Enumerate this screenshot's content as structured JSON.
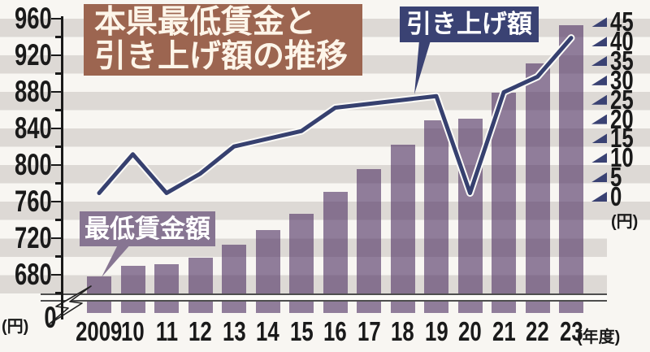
{
  "title": {
    "line1": "本県最低賃金と",
    "line2": "引き上げ額の推移",
    "full": "本県最低賃金と引き上げ額の推移"
  },
  "units": {
    "left": "(円)",
    "right": "(円)",
    "x": "(年度)",
    "axis_zero": "0"
  },
  "colors": {
    "bar": "#8d7a97",
    "line": "#36406f",
    "title_bg": "#9c6550",
    "increase_badge_bg": "#3a4273",
    "wage_badge_bg": "#877592",
    "stripe_gray": "#ddd9d5",
    "background": "#f8f6f2"
  },
  "chart_data": {
    "type": "bar",
    "subtype": "bar+line combo",
    "title": "本県最低賃金と引き上げ額の推移",
    "categories": [
      "2009",
      "10",
      "11",
      "12",
      "13",
      "14",
      "15",
      "16",
      "17",
      "18",
      "19",
      "20",
      "21",
      "22",
      "23"
    ],
    "x_unit": "年度",
    "series": [
      {
        "name": "最低賃金額",
        "type": "bar",
        "axis": "left",
        "unit": "円",
        "values": [
          678,
          690,
          692,
          699,
          713,
          729,
          747,
          771,
          796,
          822,
          849,
          851,
          879,
          911,
          953
        ]
      },
      {
        "name": "引き上げ額",
        "type": "line",
        "axis": "right",
        "unit": "円",
        "values": [
          2,
          12,
          2,
          7,
          14,
          16,
          18,
          24,
          25,
          26,
          27,
          2,
          28,
          32,
          42
        ]
      }
    ],
    "left_axis": {
      "ticks": [
        960,
        920,
        880,
        840,
        800,
        760,
        720,
        680
      ],
      "zero_label": "0",
      "unit": "円",
      "axis_break": true,
      "minor_step": 20
    },
    "right_axis": {
      "ticks": [
        45,
        40,
        35,
        30,
        25,
        20,
        15,
        10,
        5,
        0
      ],
      "unit": "円",
      "marker": "triangle"
    },
    "grid": "horizontal 20-yen alternating bands",
    "legend_position": "callout labels on chart"
  }
}
